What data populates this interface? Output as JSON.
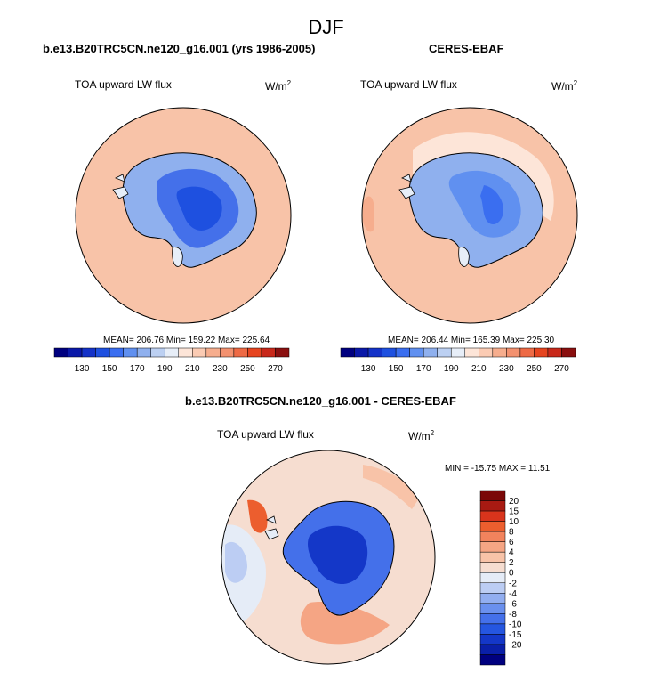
{
  "season": "DJF",
  "panels": [
    {
      "title": "b.e13.B20TRC5CN.ne120_g16.001 (yrs 1986-2005)",
      "field": "TOA upward LW flux",
      "units": "W/m",
      "units_sup": "2",
      "stats": "MEAN= 206.76  Min= 159.22  Max= 225.64"
    },
    {
      "title": "CERES-EBAF",
      "field": "TOA upward LW flux",
      "units": "W/m",
      "units_sup": "2",
      "stats": "MEAN= 206.44  Min= 165.39  Max= 225.30"
    },
    {
      "title": "b.e13.B20TRC5CN.ne120_g16.001 - CERES-EBAF",
      "field": "TOA upward LW flux",
      "units": "W/m",
      "units_sup": "2",
      "stats": "MIN = -15.75 MAX =  11.51"
    }
  ],
  "colors": {
    "flux_bins": [
      "#00007f",
      "#0a18a8",
      "#1432c8",
      "#1e50e0",
      "#3a6ef0",
      "#6090f0",
      "#8fb0ee",
      "#bcd0f2",
      "#e7eef8",
      "#fde5d8",
      "#fbcbb3",
      "#f6ad8d",
      "#f3916f",
      "#ee6a45",
      "#e6441f",
      "#c8281a",
      "#8a0f0f"
    ],
    "diff_bins": [
      "#00007f",
      "#0a1fa8",
      "#1437c8",
      "#2556e0",
      "#4470ea",
      "#6a90ee",
      "#92aef0",
      "#bccdf3",
      "#e5ecf7",
      "#f6ddd0",
      "#f8c3a8",
      "#f5a584",
      "#f2835d",
      "#ec5e2e",
      "#d8341c",
      "#a81a12",
      "#7a0808"
    ]
  },
  "chart_data": [
    {
      "type": "heatmap",
      "projection": "south-polar-stereographic",
      "title": "b.e13.B20TRC5CN.ne120_g16.001 (yrs 1986-2005)",
      "field": "TOA upward LW flux",
      "units": "W/m2",
      "colorbar_ticks": [
        "130",
        "150",
        "170",
        "190",
        "210",
        "230",
        "250",
        "270"
      ],
      "mean": 206.76,
      "min": 159.22,
      "max": 225.64
    },
    {
      "type": "heatmap",
      "projection": "south-polar-stereographic",
      "title": "CERES-EBAF",
      "field": "TOA upward LW flux",
      "units": "W/m2",
      "colorbar_ticks": [
        "130",
        "150",
        "170",
        "190",
        "210",
        "230",
        "250",
        "270"
      ],
      "mean": 206.44,
      "min": 165.39,
      "max": 225.3
    },
    {
      "type": "heatmap",
      "projection": "south-polar-stereographic",
      "title": "b.e13.B20TRC5CN.ne120_g16.001 - CERES-EBAF",
      "field": "TOA upward LW flux",
      "units": "W/m2",
      "colorbar_ticks": [
        "20",
        "15",
        "10",
        "8",
        "6",
        "4",
        "2",
        "0",
        "-2",
        "-4",
        "-6",
        "-8",
        "-10",
        "-15",
        "-20"
      ],
      "min": -15.75,
      "max": 11.51
    }
  ]
}
